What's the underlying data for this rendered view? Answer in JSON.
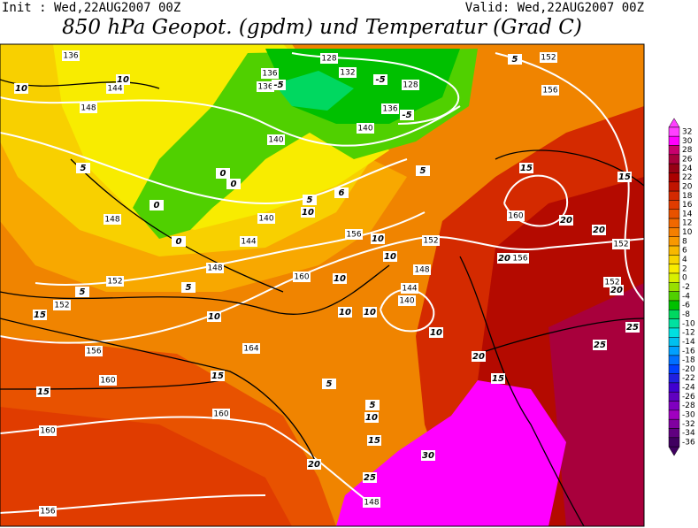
{
  "header": {
    "init": "Init : Wed,22AUG2007 00Z",
    "valid": "Valid: Wed,22AUG2007 00Z",
    "title": "850 hPa Geopot. (gpdm) und Temperatur (Grad C)"
  },
  "colorbar": {
    "labels": [
      32,
      30,
      28,
      26,
      24,
      22,
      20,
      18,
      16,
      14,
      12,
      10,
      8,
      6,
      4,
      2,
      0,
      -2,
      -4,
      -6,
      -8,
      -10,
      -12,
      -14,
      -16,
      -18,
      -20,
      -22,
      -24,
      -26,
      -28,
      -30,
      -32,
      -34,
      -36
    ],
    "colors": [
      "#ff40ff",
      "#ff00ff",
      "#c8006e",
      "#a8003c",
      "#960014",
      "#aa0000",
      "#c01400",
      "#d42a00",
      "#e03c00",
      "#e85200",
      "#f06800",
      "#f57f00",
      "#f89800",
      "#f8b800",
      "#f8d400",
      "#f8ec00",
      "#d8f000",
      "#98e000",
      "#50d000",
      "#00c000",
      "#00d860",
      "#00e0a0",
      "#00e0e0",
      "#00c0f0",
      "#00a0ff",
      "#0070ff",
      "#0040ff",
      "#2020e0",
      "#4000d0",
      "#6000c0",
      "#8000c0",
      "#a000c0",
      "#8000a0",
      "#600080",
      "#400060"
    ]
  },
  "map": {
    "height_labels": [
      "136",
      "144",
      "148",
      "136",
      "136",
      "128",
      "132",
      "128",
      "136",
      "140",
      "140",
      "148",
      "140",
      "144",
      "148",
      "152",
      "152",
      "156",
      "160",
      "164",
      "160",
      "160",
      "156",
      "160",
      "156",
      "152",
      "148",
      "144",
      "140",
      "152",
      "156",
      "160",
      "152",
      "152",
      "156",
      "148"
    ],
    "temperature_labels": [
      "10",
      "10",
      "5",
      "0",
      "0",
      "0",
      "0",
      "-5",
      "-5",
      "-5",
      "5",
      "10",
      "6",
      "5",
      "5",
      "15",
      "15",
      "20",
      "20",
      "20",
      "20",
      "25",
      "25",
      "20",
      "15",
      "10",
      "10",
      "10",
      "10",
      "10",
      "10",
      "10",
      "15",
      "5",
      "5",
      "15",
      "15",
      "5",
      "5",
      "10",
      "15",
      "20",
      "30",
      "25"
    ]
  }
}
